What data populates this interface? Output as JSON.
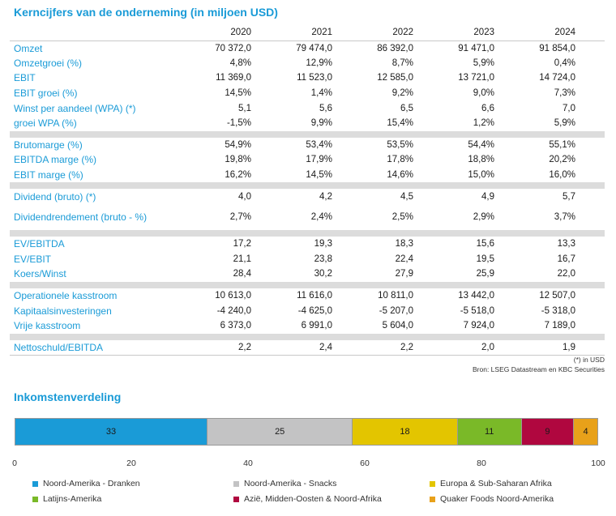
{
  "title": "Kerncijfers van de onderneming (in miljoen USD)",
  "years": [
    "2020",
    "2021",
    "2022",
    "2023",
    "2024"
  ],
  "groups": [
    [
      {
        "label": "Omzet",
        "values": [
          "70 372,0",
          "79 474,0",
          "86 392,0",
          "91 471,0",
          "91 854,0"
        ]
      },
      {
        "label": "Omzetgroei (%)",
        "values": [
          "4,8%",
          "12,9%",
          "8,7%",
          "5,9%",
          "0,4%"
        ]
      },
      {
        "label": "EBIT",
        "values": [
          "11 369,0",
          "11 523,0",
          "12 585,0",
          "13 721,0",
          "14 724,0"
        ]
      },
      {
        "label": "EBIT groei (%)",
        "values": [
          "14,5%",
          "1,4%",
          "9,2%",
          "9,0%",
          "7,3%"
        ]
      },
      {
        "label": "Winst per aandeel (WPA) (*)",
        "values": [
          "5,1",
          "5,6",
          "6,5",
          "6,6",
          "7,0"
        ]
      },
      {
        "label": "groei WPA (%)",
        "values": [
          "-1,5%",
          "9,9%",
          "15,4%",
          "1,2%",
          "5,9%"
        ]
      }
    ],
    [
      {
        "label": "Brutomarge (%)",
        "values": [
          "54,9%",
          "53,4%",
          "53,5%",
          "54,4%",
          "55,1%"
        ]
      },
      {
        "label": "EBITDA marge (%)",
        "values": [
          "19,8%",
          "17,9%",
          "17,8%",
          "18,8%",
          "20,2%"
        ]
      },
      {
        "label": "EBIT marge (%)",
        "values": [
          "16,2%",
          "14,5%",
          "14,6%",
          "15,0%",
          "16,0%"
        ]
      }
    ],
    [
      {
        "label": "Dividend (bruto) (*)",
        "values": [
          "4,0",
          "4,2",
          "4,5",
          "4,9",
          "5,7"
        ]
      },
      {
        "label": "Dividendrendement (bruto - %)",
        "values": [
          "2,7%",
          "2,4%",
          "2,5%",
          "2,9%",
          "3,7%"
        ],
        "tall": true
      }
    ],
    [
      {
        "label": "EV/EBITDA",
        "values": [
          "17,2",
          "19,3",
          "18,3",
          "15,6",
          "13,3"
        ]
      },
      {
        "label": "EV/EBIT",
        "values": [
          "21,1",
          "23,8",
          "22,4",
          "19,5",
          "16,7"
        ]
      },
      {
        "label": "Koers/Winst",
        "values": [
          "28,4",
          "30,2",
          "27,9",
          "25,9",
          "22,0"
        ]
      }
    ],
    [
      {
        "label": "Operationele kasstroom",
        "values": [
          "10 613,0",
          "11 616,0",
          "10 811,0",
          "13 442,0",
          "12 507,0"
        ]
      },
      {
        "label": "Kapitaalsinvesteringen",
        "values": [
          "-4 240,0",
          "-4 625,0",
          "-5 207,0",
          "-5 518,0",
          "-5 318,0"
        ]
      },
      {
        "label": "Vrije kasstroom",
        "values": [
          "6 373,0",
          "6 991,0",
          "5 604,0",
          "7 924,0",
          "7 189,0"
        ]
      }
    ],
    [
      {
        "label": "Nettoschuld/EBITDA",
        "values": [
          "2,2",
          "2,4",
          "2,2",
          "2,0",
          "1,9"
        ]
      }
    ]
  ],
  "notes": {
    "footnote": "(*) in USD",
    "source": "Bron: LSEG Datastream en KBC Securities"
  },
  "chart_data": {
    "type": "bar",
    "orientation": "horizontal-stacked",
    "title": "Inkomstenverdeling",
    "categories": [
      "Noord-Amerika - Dranken",
      "Noord-Amerika - Snacks",
      "Europa & Sub-Saharan Afrika",
      "Latijns-Amerika",
      "Azië, Midden-Oosten & Noord-Afrika",
      "Quaker Foods Noord-Amerika"
    ],
    "values": [
      33,
      25,
      18,
      11,
      9,
      4
    ],
    "colors": [
      "#1a9bd7",
      "#c3c3c4",
      "#e3c500",
      "#7ab928",
      "#b0073f",
      "#e8a11a"
    ],
    "xlim": [
      0,
      100
    ],
    "xticks": [
      "0",
      "20",
      "40",
      "60",
      "80",
      "100"
    ],
    "legend": "bottom"
  }
}
